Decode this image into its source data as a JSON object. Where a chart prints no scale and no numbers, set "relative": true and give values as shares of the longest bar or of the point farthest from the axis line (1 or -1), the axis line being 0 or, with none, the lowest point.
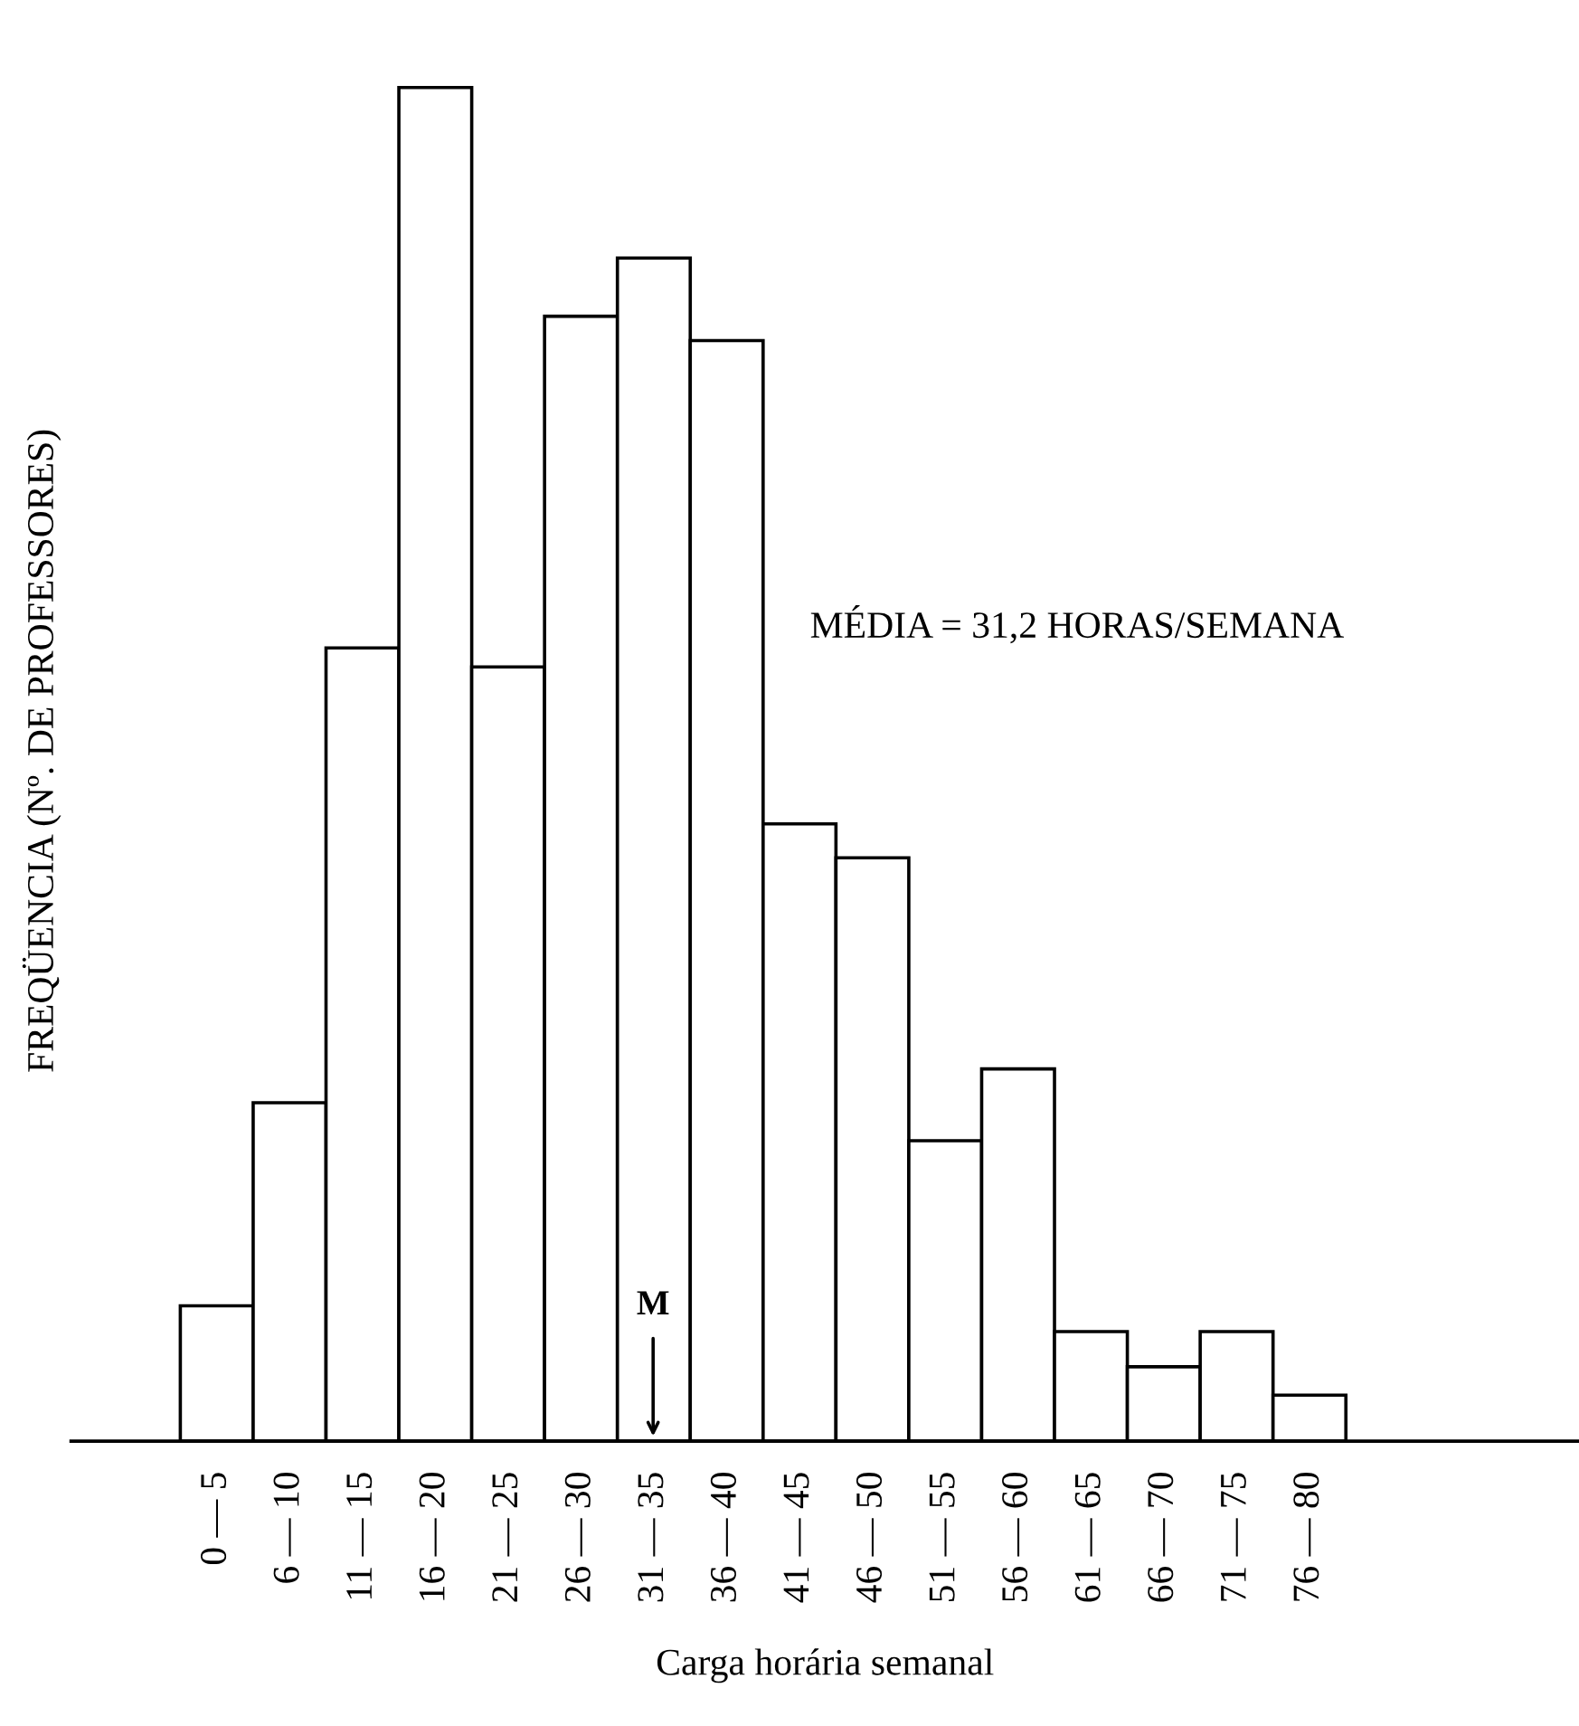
{
  "chart_data": {
    "type": "bar",
    "relative": true,
    "xlabel": "Carga horária semanal",
    "ylabel": "FREQÜENCIA (Nº. DE PROFESSORES)",
    "categories": [
      "0 — 5",
      "6 — 10",
      "11 — 15",
      "16 — 20",
      "21 — 25",
      "26 — 30",
      "31 — 35",
      "36 — 40",
      "41 — 45",
      "46 — 50",
      "51 — 55",
      "56 — 60",
      "61 — 65",
      "66 — 70",
      "71 — 75",
      "76 — 80"
    ],
    "values": [
      0.1,
      0.25,
      0.586,
      1,
      0.572,
      0.831,
      0.874,
      0.813,
      0.456,
      0.431,
      0.222,
      0.275,
      0.081,
      0.055,
      0.081,
      0.034
    ],
    "color": "#ffffff",
    "annotations": [
      "MÉDIA = 31,2 HORAS/SEMANA",
      "M"
    ],
    "grid": false,
    "legend": false
  }
}
